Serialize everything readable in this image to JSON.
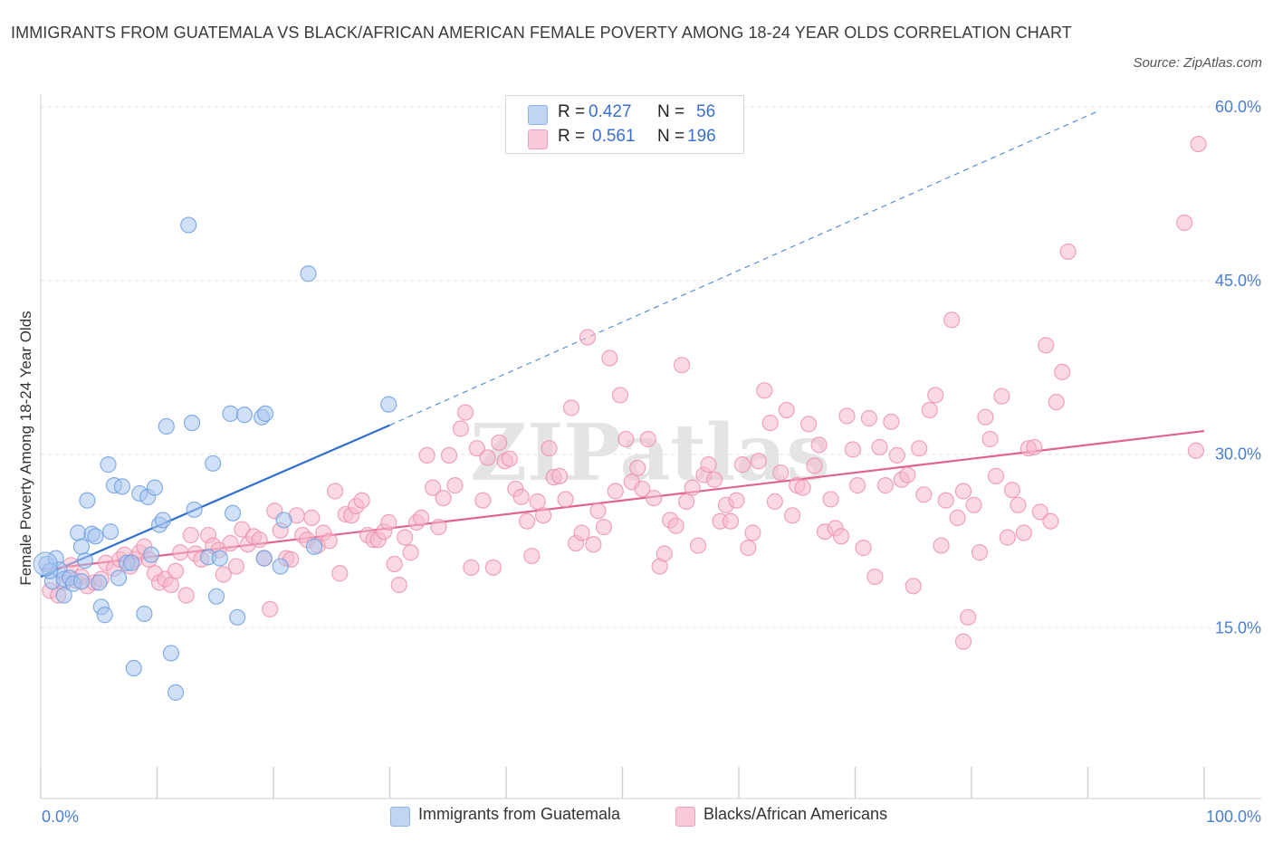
{
  "title": "IMMIGRANTS FROM GUATEMALA VS BLACK/AFRICAN AMERICAN FEMALE POVERTY AMONG 18-24 YEAR OLDS CORRELATION CHART",
  "source": "Source: ZipAtlas.com",
  "watermark": "ZIPatlas",
  "legend": {
    "rows": [
      {
        "r_label": "R =",
        "r_value": "0.427",
        "n_label": "N =",
        "n_value": "56",
        "color": "#a9c6ef"
      },
      {
        "r_label": "R =",
        "r_value": "0.561",
        "n_label": "N =",
        "n_value": "196",
        "color": "#f5b9cc"
      }
    ]
  },
  "chart_data": {
    "type": "scatter",
    "title": "IMMIGRANTS FROM GUATEMALA VS BLACK/AFRICAN AMERICAN FEMALE POVERTY AMONG 18-24 YEAR OLDS CORRELATION CHART",
    "xlabel": "",
    "ylabel": "Female Poverty Among 18-24 Year Olds",
    "xlim": [
      0,
      100
    ],
    "ylim": [
      0,
      60
    ],
    "x_tick_labels": [
      "0.0%",
      "100.0%"
    ],
    "y_ticks": [
      15,
      30,
      45,
      60
    ],
    "y_tick_labels": [
      "15.0%",
      "30.0%",
      "45.0%",
      "60.0%"
    ],
    "grid": true,
    "legend_position": "top-center",
    "series": [
      {
        "name": "Immigrants from Guatemala",
        "color": "#6a9be0",
        "fill": "#a9c6ef",
        "trend": {
          "x0": 0,
          "y0": 19.4,
          "x1": 30,
          "y1": 32.5,
          "dashed_to_x": 91.0,
          "dashed_to_y": 59.7,
          "color": "#2f6fcf"
        },
        "points": [
          [
            0.5,
            20.5
          ],
          [
            1.0,
            19.0
          ],
          [
            1.3,
            21.0
          ],
          [
            1.6,
            20.0
          ],
          [
            2.0,
            17.8
          ],
          [
            2.0,
            19.2
          ],
          [
            2.5,
            19.3
          ],
          [
            2.8,
            18.8
          ],
          [
            3.2,
            23.2
          ],
          [
            3.5,
            19.0
          ],
          [
            3.5,
            22.0
          ],
          [
            3.8,
            20.8
          ],
          [
            4.0,
            26.0
          ],
          [
            4.4,
            23.1
          ],
          [
            4.7,
            22.9
          ],
          [
            5.0,
            18.9
          ],
          [
            5.2,
            16.8
          ],
          [
            5.5,
            16.1
          ],
          [
            5.8,
            29.1
          ],
          [
            6.0,
            23.3
          ],
          [
            6.3,
            27.3
          ],
          [
            6.7,
            19.3
          ],
          [
            7.0,
            27.2
          ],
          [
            7.4,
            20.6
          ],
          [
            7.8,
            20.6
          ],
          [
            8.0,
            11.5
          ],
          [
            8.5,
            26.6
          ],
          [
            8.9,
            16.2
          ],
          [
            9.2,
            26.3
          ],
          [
            9.5,
            21.3
          ],
          [
            9.8,
            27.1
          ],
          [
            10.2,
            23.9
          ],
          [
            10.5,
            24.3
          ],
          [
            10.8,
            32.4
          ],
          [
            11.2,
            12.8
          ],
          [
            11.6,
            9.4
          ],
          [
            12.7,
            49.8
          ],
          [
            13.0,
            32.7
          ],
          [
            13.2,
            25.2
          ],
          [
            14.4,
            21.1
          ],
          [
            14.8,
            29.2
          ],
          [
            15.1,
            17.7
          ],
          [
            15.4,
            21.0
          ],
          [
            16.3,
            33.5
          ],
          [
            16.5,
            24.9
          ],
          [
            16.9,
            15.9
          ],
          [
            17.5,
            33.4
          ],
          [
            19.0,
            33.2
          ],
          [
            19.3,
            33.5
          ],
          [
            19.2,
            21.0
          ],
          [
            20.6,
            20.3
          ],
          [
            20.9,
            24.3
          ],
          [
            23.0,
            45.6
          ],
          [
            23.5,
            22.0
          ],
          [
            29.9,
            34.3
          ],
          [
            0.8,
            19.9
          ]
        ]
      },
      {
        "name": "Blacks/African Americans",
        "color": "#ec8fab",
        "fill": "#f5b9cc",
        "trend": {
          "x0": 0,
          "y0": 20.0,
          "x1": 100,
          "y1": 32.0,
          "color": "#e0648e"
        },
        "points": [
          [
            0.8,
            18.2
          ],
          [
            1.5,
            17.8
          ],
          [
            2.0,
            18.9
          ],
          [
            2.6,
            20.4
          ],
          [
            3.0,
            19.1
          ],
          [
            3.5,
            19.4
          ],
          [
            4.0,
            18.6
          ],
          [
            4.6,
            18.9
          ],
          [
            5.2,
            19.2
          ],
          [
            5.6,
            20.6
          ],
          [
            6.3,
            20.1
          ],
          [
            6.8,
            20.9
          ],
          [
            7.2,
            21.3
          ],
          [
            7.7,
            20.3
          ],
          [
            8.1,
            20.9
          ],
          [
            8.5,
            21.5
          ],
          [
            8.9,
            22.0
          ],
          [
            9.3,
            20.9
          ],
          [
            9.8,
            19.7
          ],
          [
            10.2,
            18.9
          ],
          [
            10.7,
            19.2
          ],
          [
            11.2,
            18.7
          ],
          [
            11.6,
            19.9
          ],
          [
            12.0,
            21.5
          ],
          [
            12.5,
            17.8
          ],
          [
            12.9,
            23.0
          ],
          [
            13.3,
            21.4
          ],
          [
            13.8,
            20.9
          ],
          [
            14.4,
            23.0
          ],
          [
            14.8,
            22.1
          ],
          [
            15.3,
            21.7
          ],
          [
            15.7,
            19.6
          ],
          [
            16.3,
            22.3
          ],
          [
            16.8,
            20.3
          ],
          [
            17.3,
            23.5
          ],
          [
            17.8,
            22.2
          ],
          [
            18.3,
            22.9
          ],
          [
            18.8,
            22.6
          ],
          [
            19.2,
            21.0
          ],
          [
            19.7,
            16.6
          ],
          [
            20.1,
            25.1
          ],
          [
            20.6,
            23.4
          ],
          [
            21.1,
            21.0
          ],
          [
            21.5,
            20.9
          ],
          [
            22.0,
            24.7
          ],
          [
            22.5,
            23.0
          ],
          [
            22.9,
            22.6
          ],
          [
            23.3,
            24.5
          ],
          [
            23.8,
            22.1
          ],
          [
            24.3,
            23.2
          ],
          [
            24.8,
            22.5
          ],
          [
            25.3,
            26.8
          ],
          [
            25.7,
            19.7
          ],
          [
            26.2,
            24.8
          ],
          [
            26.7,
            24.7
          ],
          [
            27.1,
            25.5
          ],
          [
            27.6,
            26.0
          ],
          [
            28.1,
            23.0
          ],
          [
            28.6,
            22.6
          ],
          [
            29.0,
            22.6
          ],
          [
            29.5,
            23.3
          ],
          [
            29.9,
            24.1
          ],
          [
            30.4,
            20.5
          ],
          [
            30.8,
            18.7
          ],
          [
            31.3,
            22.8
          ],
          [
            31.8,
            21.5
          ],
          [
            32.3,
            24.1
          ],
          [
            32.7,
            24.5
          ],
          [
            33.2,
            29.9
          ],
          [
            33.7,
            27.1
          ],
          [
            34.2,
            23.7
          ],
          [
            34.6,
            26.2
          ],
          [
            35.1,
            29.9
          ],
          [
            35.6,
            27.3
          ],
          [
            36.1,
            32.2
          ],
          [
            36.5,
            33.6
          ],
          [
            37.0,
            20.2
          ],
          [
            37.5,
            30.5
          ],
          [
            38.0,
            26.0
          ],
          [
            38.4,
            29.7
          ],
          [
            38.9,
            20.2
          ],
          [
            39.4,
            31.0
          ],
          [
            39.9,
            29.4
          ],
          [
            40.3,
            29.6
          ],
          [
            40.8,
            27.0
          ],
          [
            41.3,
            26.3
          ],
          [
            41.8,
            24.2
          ],
          [
            42.2,
            21.2
          ],
          [
            42.7,
            25.9
          ],
          [
            43.2,
            24.7
          ],
          [
            43.7,
            30.5
          ],
          [
            44.1,
            28.0
          ],
          [
            44.6,
            28.1
          ],
          [
            45.1,
            26.1
          ],
          [
            45.6,
            34.0
          ],
          [
            46.0,
            22.3
          ],
          [
            46.5,
            23.2
          ],
          [
            47.0,
            40.1
          ],
          [
            47.5,
            22.2
          ],
          [
            47.9,
            25.1
          ],
          [
            48.4,
            23.7
          ],
          [
            48.9,
            38.3
          ],
          [
            49.4,
            26.8
          ],
          [
            49.8,
            35.1
          ],
          [
            50.3,
            31.3
          ],
          [
            50.8,
            27.6
          ],
          [
            51.3,
            28.8
          ],
          [
            51.7,
            27.0
          ],
          [
            52.2,
            31.3
          ],
          [
            52.7,
            26.2
          ],
          [
            53.2,
            20.3
          ],
          [
            53.6,
            21.4
          ],
          [
            54.1,
            24.3
          ],
          [
            54.6,
            23.8
          ],
          [
            55.1,
            37.7
          ],
          [
            55.5,
            25.9
          ],
          [
            56.0,
            27.1
          ],
          [
            56.5,
            22.1
          ],
          [
            57.0,
            28.2
          ],
          [
            57.4,
            29.1
          ],
          [
            57.9,
            27.8
          ],
          [
            58.4,
            24.2
          ],
          [
            58.9,
            25.6
          ],
          [
            59.3,
            24.2
          ],
          [
            59.8,
            26.0
          ],
          [
            60.3,
            29.1
          ],
          [
            60.8,
            21.9
          ],
          [
            61.2,
            23.2
          ],
          [
            61.7,
            29.4
          ],
          [
            62.2,
            35.5
          ],
          [
            62.7,
            32.7
          ],
          [
            63.1,
            25.9
          ],
          [
            63.6,
            28.4
          ],
          [
            64.1,
            33.8
          ],
          [
            64.6,
            24.7
          ],
          [
            65.0,
            27.3
          ],
          [
            65.5,
            27.1
          ],
          [
            66.0,
            32.6
          ],
          [
            66.5,
            29.0
          ],
          [
            66.9,
            30.8
          ],
          [
            67.4,
            23.3
          ],
          [
            67.9,
            26.1
          ],
          [
            68.3,
            23.6
          ],
          [
            68.8,
            22.9
          ],
          [
            69.3,
            33.3
          ],
          [
            69.8,
            30.4
          ],
          [
            70.2,
            27.3
          ],
          [
            70.7,
            21.9
          ],
          [
            71.2,
            33.1
          ],
          [
            71.7,
            19.4
          ],
          [
            72.1,
            30.6
          ],
          [
            72.6,
            27.3
          ],
          [
            73.1,
            32.8
          ],
          [
            73.6,
            29.9
          ],
          [
            74.0,
            27.8
          ],
          [
            74.5,
            28.2
          ],
          [
            75.0,
            18.6
          ],
          [
            75.5,
            30.5
          ],
          [
            75.9,
            26.5
          ],
          [
            76.4,
            33.8
          ],
          [
            76.9,
            35.1
          ],
          [
            77.4,
            22.1
          ],
          [
            77.8,
            26.0
          ],
          [
            78.3,
            41.6
          ],
          [
            78.8,
            24.5
          ],
          [
            79.3,
            26.8
          ],
          [
            79.7,
            15.9
          ],
          [
            79.3,
            13.8
          ],
          [
            80.2,
            25.6
          ],
          [
            80.7,
            21.5
          ],
          [
            81.2,
            33.2
          ],
          [
            81.6,
            31.3
          ],
          [
            82.1,
            28.1
          ],
          [
            82.6,
            35.0
          ],
          [
            83.1,
            22.8
          ],
          [
            83.5,
            26.9
          ],
          [
            84.0,
            25.6
          ],
          [
            84.5,
            23.2
          ],
          [
            84.9,
            30.5
          ],
          [
            85.4,
            30.6
          ],
          [
            85.9,
            25.0
          ],
          [
            86.4,
            39.4
          ],
          [
            86.8,
            24.2
          ],
          [
            87.3,
            34.5
          ],
          [
            87.8,
            37.1
          ],
          [
            88.3,
            47.5
          ],
          [
            98.3,
            50.0
          ],
          [
            99.5,
            56.8
          ],
          [
            99.3,
            30.3
          ]
        ]
      }
    ]
  },
  "bottom_legend": {
    "items": [
      {
        "label": "Immigrants from Guatemala",
        "color": "#a9c6ef"
      },
      {
        "label": "Blacks/African Americans",
        "color": "#f5b9cc"
      }
    ]
  }
}
